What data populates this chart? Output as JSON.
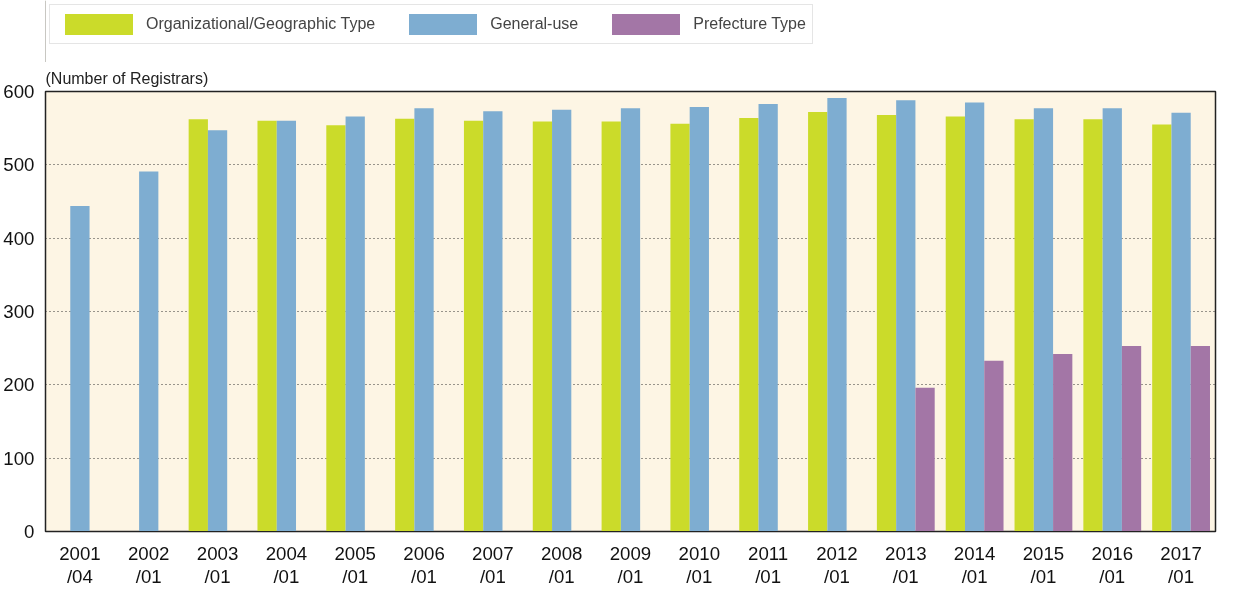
{
  "chart_data": {
    "type": "bar",
    "ylabel": "(Number of Registrars)",
    "categories": [
      "2001\n/04",
      "2002\n/01",
      "2003\n/01",
      "2004\n/01",
      "2005\n/01",
      "2006\n/01",
      "2007\n/01",
      "2008\n/01",
      "2009\n/01",
      "2010\n/01",
      "2011\n/01",
      "2012\n/01",
      "2013\n/01",
      "2014\n/01",
      "2015\n/01",
      "2016\n/01",
      "2017\n/01"
    ],
    "series": [
      {
        "name": "Organizational/Geographic Type",
        "color": "#cbdb2a",
        "values": [
          null,
          null,
          562,
          560,
          554,
          563,
          560,
          559,
          559,
          556,
          564,
          572,
          568,
          566,
          562,
          562,
          555
        ]
      },
      {
        "name": "General-use",
        "color": "#7eadd1",
        "values": [
          444,
          491,
          547,
          560,
          566,
          577,
          573,
          575,
          577,
          579,
          583,
          591,
          588,
          585,
          577,
          577,
          571
        ]
      },
      {
        "name": "Prefecture Type",
        "color": "#a376a6",
        "values": [
          null,
          null,
          null,
          null,
          null,
          null,
          null,
          null,
          null,
          null,
          null,
          null,
          196,
          233,
          242,
          253,
          253
        ]
      }
    ],
    "ylim": [
      0,
      600
    ],
    "yticks": [
      0,
      100,
      200,
      300,
      400,
      500,
      600
    ],
    "grid": "y",
    "legend": "top left"
  }
}
